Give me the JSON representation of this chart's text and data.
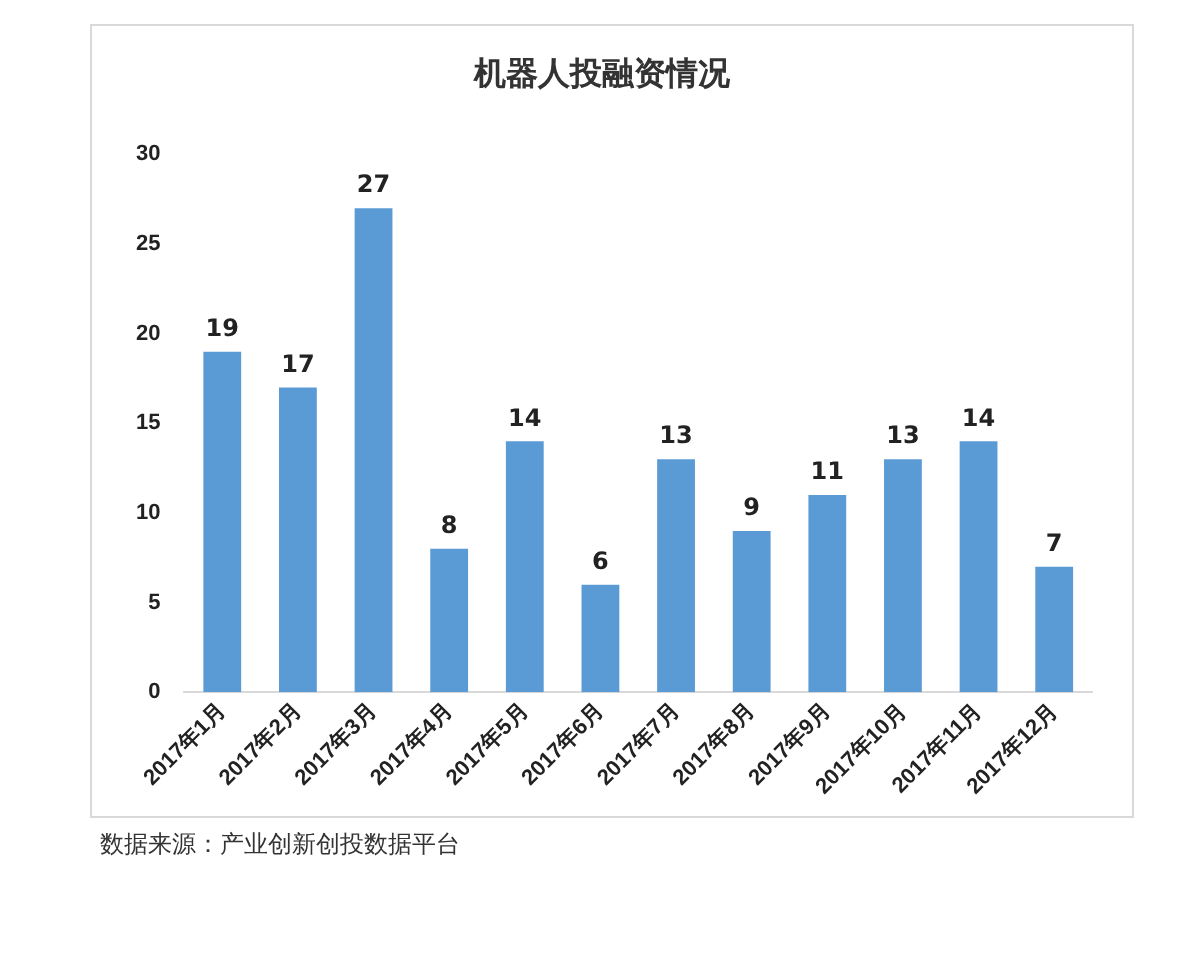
{
  "chart_data": {
    "type": "bar",
    "title": "机器人投融资情况",
    "categories": [
      "2017年1月",
      "2017年2月",
      "2017年3月",
      "2017年4月",
      "2017年5月",
      "2017年6月",
      "2017年7月",
      "2017年8月",
      "2017年9月",
      "2017年10月",
      "2017年11月",
      "2017年12月"
    ],
    "values": [
      19,
      17,
      27,
      8,
      14,
      6,
      13,
      9,
      11,
      13,
      14,
      7
    ],
    "color": "#5b9bd5",
    "ylim": [
      0,
      30
    ],
    "yticks": [
      0,
      5,
      10,
      15,
      20,
      25,
      30
    ],
    "grid": false,
    "data_labels": true,
    "annotations": [
      "数据来源：产业创新创投数据平台"
    ]
  }
}
